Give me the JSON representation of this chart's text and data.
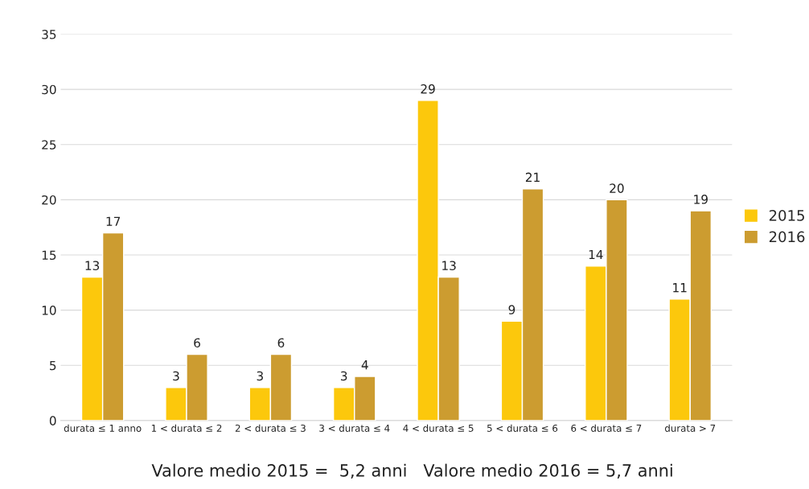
{
  "chart_data": {
    "type": "bar",
    "categories": [
      "durata ≤ 1 anno",
      "1 < durata ≤ 2",
      "2 < durata ≤ 3",
      "3 < durata ≤ 4",
      "4 < durata ≤ 5",
      "5 < durata ≤ 6",
      "6 < durata ≤ 7",
      "durata > 7"
    ],
    "series": [
      {
        "name": "2015",
        "color": "#fcc80c",
        "values": [
          13,
          3,
          3,
          3,
          29,
          9,
          14,
          11
        ]
      },
      {
        "name": "2016",
        "color": "#cc9c30",
        "values": [
          17,
          6,
          6,
          4,
          13,
          21,
          20,
          19
        ]
      }
    ],
    "ylim": [
      0,
      35
    ],
    "yticks": [
      0,
      5,
      10,
      15,
      20,
      25,
      30,
      35
    ],
    "grid": "y",
    "legend": "right",
    "data_labels": true,
    "annotations": [
      "Valore medio 2015 =  5,2 anni   Valore medio 2016 = 5,7 anni"
    ]
  }
}
